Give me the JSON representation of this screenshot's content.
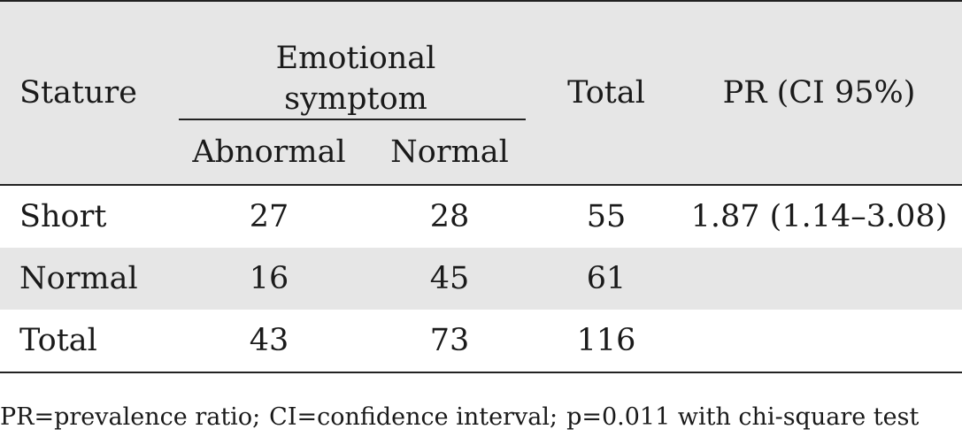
{
  "table": {
    "header": {
      "stature": "Stature",
      "group": "Emotional symptom",
      "group_line1": "Emotional",
      "group_line2": "symptom",
      "abnormal": "Abnormal",
      "normal": "Normal",
      "total": "Total",
      "pr": "PR (CI 95%)"
    },
    "rows": [
      {
        "stature": "Short",
        "abnormal": "27",
        "normal": "28",
        "total": "55",
        "pr": "1.87 (1.14–3.08)"
      },
      {
        "stature": "Normal",
        "abnormal": "16",
        "normal": "45",
        "total": "61",
        "pr": ""
      },
      {
        "stature": "Total",
        "abnormal": "43",
        "normal": "73",
        "total": "116",
        "pr": ""
      }
    ]
  },
  "footnote": {
    "part1": "PR=prevalence ratio;",
    "part2": "CI=confidence interval;",
    "part3": "p=0.011 with chi-square test"
  }
}
